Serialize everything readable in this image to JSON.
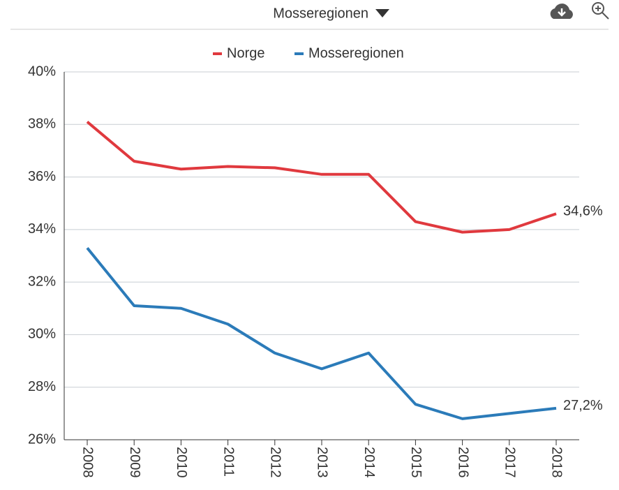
{
  "selector": "Mosseregionen",
  "chart_data": {
    "type": "line",
    "categories": [
      "2008",
      "2009",
      "2010",
      "2011",
      "2012",
      "2013",
      "2014",
      "2015",
      "2016",
      "2017",
      "2018"
    ],
    "series": [
      {
        "name": "Norge",
        "color": "#e0393e",
        "values": [
          38.1,
          36.6,
          36.3,
          36.4,
          36.35,
          36.1,
          36.1,
          34.3,
          33.9,
          34.0,
          34.6
        ],
        "value_labels": [
          null,
          null,
          null,
          null,
          null,
          null,
          null,
          null,
          null,
          null,
          "34,6%"
        ]
      },
      {
        "name": "Mosseregionen",
        "color": "#2b7bb9",
        "values": [
          33.3,
          31.1,
          31.0,
          30.4,
          29.3,
          28.7,
          29.3,
          27.35,
          26.8,
          27.0,
          27.2
        ],
        "value_labels": [
          null,
          null,
          null,
          null,
          null,
          null,
          null,
          null,
          null,
          null,
          "27,2%"
        ]
      }
    ],
    "ylim": [
      26,
      40
    ],
    "yticks": [
      {
        "value": 26,
        "label": "26%"
      },
      {
        "value": 28,
        "label": "28%"
      },
      {
        "value": 30,
        "label": "30%"
      },
      {
        "value": 32,
        "label": "32%"
      },
      {
        "value": 34,
        "label": "34%"
      },
      {
        "value": 36,
        "label": "36%"
      },
      {
        "value": 38,
        "label": "38%"
      },
      {
        "value": 40,
        "label": "40%"
      }
    ],
    "grid": true,
    "legend": "top"
  }
}
